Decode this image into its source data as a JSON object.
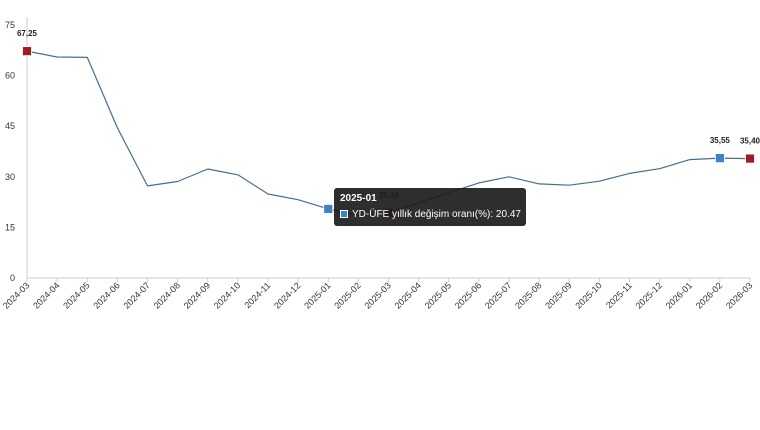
{
  "chart_data": {
    "type": "line",
    "categories": [
      "2024-03",
      "2024-04",
      "2024-05",
      "2024-06",
      "2024-07",
      "2024-08",
      "2024-09",
      "2024-10",
      "2024-11",
      "2024-12",
      "2025-01",
      "2025-02",
      "2025-03",
      "2025-04",
      "2025-05",
      "2025-06",
      "2025-07",
      "2025-08",
      "2025-09",
      "2025-10",
      "2025-11",
      "2025-12",
      "2026-01",
      "2026-02",
      "2026-03"
    ],
    "series": [
      {
        "name": "YD-ÜFE yıllık değişim oranı(%)",
        "values": [
          67.25,
          65.5,
          65.4,
          44.5,
          27.3,
          28.6,
          32.3,
          30.6,
          24.9,
          23.2,
          20.47,
          18.6,
          19.34,
          22.3,
          25.3,
          28.2,
          30.0,
          27.9,
          27.5,
          28.7,
          31.0,
          32.4,
          35.1,
          35.55,
          35.4
        ]
      }
    ],
    "ylim": [
      0,
      75
    ],
    "yticks": [
      "0",
      "15",
      "30",
      "45",
      "60",
      "75"
    ],
    "point_labels": [
      {
        "category": "2024-03",
        "text": "67,25"
      },
      {
        "category": "2025-03",
        "text": "19,34"
      },
      {
        "category": "2026-02",
        "text": "35,55"
      },
      {
        "category": "2026-03",
        "text": "35,40"
      }
    ],
    "markers": [
      {
        "category": "2024-03",
        "color": "#a01c24"
      },
      {
        "category": "2025-01",
        "color": "#3d84c4"
      },
      {
        "category": "2025-03",
        "color": "#a01c24"
      },
      {
        "category": "2026-02",
        "color": "#3d84c4"
      },
      {
        "category": "2026-03",
        "color": "#a01c24"
      }
    ],
    "line_color": "#4a6d8c",
    "grid": false
  },
  "tooltip": {
    "title": "2025-01",
    "series_label": "YD-ÜFE yıllık değişim oranı(%)",
    "value": "20.47",
    "text": "YD-ÜFE yıllık değişim oranı(%): 20.47",
    "swatch_color": "#3d84c4"
  }
}
